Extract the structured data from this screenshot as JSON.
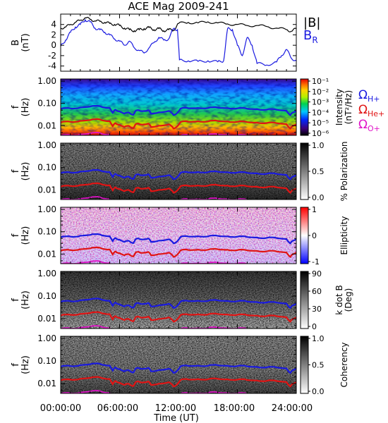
{
  "chart_data": {
    "type": "multi-panel spectrogram",
    "title": "ACE Mag 2009-241",
    "xlabel": "Time (UT)",
    "xticks": [
      "00:00:00",
      "06:00:00",
      "12:00:00",
      "18:00:00",
      "24:00:00"
    ],
    "xlim_hours": [
      0,
      24
    ],
    "freq_ticks": [
      "1.00",
      "0.10",
      "0.01"
    ],
    "panels": [
      {
        "id": "b",
        "type": "line",
        "ylabel": "B",
        "yunit": "(nT)",
        "yticks": [
          "4",
          "2",
          "0",
          "-2",
          "-4"
        ],
        "ylim": [
          -5,
          6
        ],
        "legend": [
          "|B|",
          "B"
        ],
        "legend_sub": "R",
        "series": [
          {
            "name": "|B|",
            "color": "#000000",
            "x": [
              0,
              0.5,
              1,
              1.5,
              2,
              2.5,
              3,
              3.5,
              4,
              4.5,
              5,
              5.5,
              6,
              6.5,
              7,
              7.5,
              8,
              8.5,
              9,
              9.5,
              10,
              10.5,
              11,
              11.5,
              12,
              13,
              14,
              15,
              16,
              17,
              18,
              19,
              20,
              21,
              22,
              23,
              23.5,
              24
            ],
            "y": [
              3.3,
              3.5,
              4.0,
              4.4,
              4.8,
              5.3,
              5.0,
              4.7,
              4.6,
              4.4,
              4.2,
              4.0,
              3.8,
              3.3,
              3.0,
              2.8,
              3.0,
              3.2,
              3.4,
              3.0,
              3.2,
              2.8,
              3.0,
              2.9,
              4.2,
              4.4,
              4.3,
              4.5,
              4.3,
              4.1,
              4.0,
              3.8,
              3.8,
              3.6,
              3.3,
              3.0,
              2.7,
              3.2
            ]
          },
          {
            "name": "B_R",
            "color": "#1a1ae0",
            "x": [
              0,
              0.5,
              1,
              1.5,
              2,
              2.5,
              3,
              3.5,
              4,
              4.5,
              5,
              5.5,
              6,
              6.5,
              7,
              7.5,
              8,
              8.5,
              9,
              9.5,
              10,
              10.5,
              11,
              11.5,
              11.9,
              12.1,
              13,
              14,
              15,
              16,
              16.6,
              17,
              17.5,
              18,
              18.5,
              19,
              19.5,
              20,
              21,
              22,
              22.5,
              23,
              23.5,
              24
            ],
            "y": [
              -0.2,
              1.0,
              2.5,
              3.5,
              4.0,
              4.9,
              4.5,
              3.3,
              3.0,
              2.5,
              2.0,
              1.2,
              0.8,
              0.0,
              0.8,
              -0.5,
              -1.0,
              -1.5,
              -0.5,
              0.5,
              1.5,
              1.0,
              1.2,
              3.2,
              3.0,
              -2.8,
              -3.0,
              -3.1,
              -3.0,
              -3.2,
              -3.0,
              3.2,
              3.0,
              0.0,
              -2.0,
              1.5,
              0.0,
              -3.5,
              -3.8,
              -3.2,
              -2.0,
              -0.8,
              -2.5,
              -3.0
            ]
          }
        ]
      },
      {
        "id": "psd",
        "type": "heatmap",
        "ylabel": "f",
        "yunit": "(Hz)",
        "colorbar": {
          "label_line1": "Intensity",
          "label_line2": "(nT²/Hz)",
          "ticks": [
            "10⁻¹",
            "10⁻²",
            "10⁻³",
            "10⁻⁴",
            "10⁻⁵",
            "10⁻⁶"
          ],
          "colormap": "rainbow"
        },
        "gyro_legend": [
          {
            "symbol": "Ω",
            "sub": "H+",
            "color": "#1a1ae0"
          },
          {
            "symbol": "Ω",
            "sub": "He+",
            "color": "#e01414"
          },
          {
            "symbol": "Ω",
            "sub": "O+",
            "color": "#e014c8"
          }
        ]
      },
      {
        "id": "pol",
        "type": "heatmap",
        "ylabel": "f",
        "yunit": "(Hz)",
        "colorbar": {
          "label_line1": "% Polarization",
          "ticks": [
            "1.0",
            "0.5",
            "0.0"
          ],
          "colormap": "gray"
        }
      },
      {
        "id": "ell",
        "type": "heatmap",
        "ylabel": "f",
        "yunit": "(Hz)",
        "colorbar": {
          "label_line1": "Ellipticity",
          "ticks": [
            "1",
            "0",
            "-1"
          ],
          "colormap": "bwr"
        }
      },
      {
        "id": "kdb",
        "type": "heatmap",
        "ylabel": "f",
        "yunit": "(Hz)",
        "colorbar": {
          "label_line1": "k dot B",
          "label_line2": "(Deg)",
          "ticks": [
            "90",
            "60",
            "30",
            "0"
          ],
          "colormap": "gray_r"
        }
      },
      {
        "id": "coh",
        "type": "heatmap",
        "ylabel": "f",
        "yunit": "(Hz)",
        "colorbar": {
          "label_line1": "Coherency",
          "ticks": [
            "1.0",
            "0.5",
            "0.0"
          ],
          "colormap": "gray"
        }
      }
    ],
    "gyrofrequencies_hz": {
      "x": [
        0,
        1,
        2,
        3,
        4,
        5,
        5.3,
        5.6,
        6,
        6.5,
        7,
        7.4,
        7.6,
        8,
        8.5,
        8.9,
        9.2,
        10,
        11,
        11.5,
        11.8,
        12.2,
        13,
        14,
        15,
        16,
        17,
        18,
        19,
        20,
        21,
        22,
        23,
        23.4,
        23.7,
        24
      ],
      "H+": [
        0.057,
        0.06,
        0.066,
        0.072,
        0.075,
        0.063,
        0.038,
        0.052,
        0.044,
        0.035,
        0.038,
        0.031,
        0.045,
        0.048,
        0.046,
        0.05,
        0.035,
        0.04,
        0.046,
        0.03,
        0.035,
        0.058,
        0.061,
        0.063,
        0.062,
        0.065,
        0.062,
        0.06,
        0.058,
        0.055,
        0.053,
        0.052,
        0.047,
        0.03,
        0.04,
        0.046
      ],
      "He+": [
        0.014,
        0.015,
        0.0165,
        0.018,
        0.019,
        0.016,
        0.0095,
        0.013,
        0.011,
        0.0088,
        0.0095,
        0.0078,
        0.0113,
        0.012,
        0.0115,
        0.0125,
        0.0088,
        0.01,
        0.0115,
        0.0075,
        0.0088,
        0.0145,
        0.0152,
        0.0158,
        0.0155,
        0.0163,
        0.0155,
        0.015,
        0.0145,
        0.0138,
        0.0133,
        0.013,
        0.0118,
        0.0075,
        0.01,
        0.0115
      ],
      "O+": [
        0.0036,
        0.0038,
        0.0041,
        0.0045,
        0.0047,
        0.0039,
        0.0024,
        0.0033,
        0.0028,
        0.0022,
        0.0024,
        0.002,
        0.0028,
        0.003,
        0.0029,
        0.0031,
        0.0022,
        0.0025,
        0.0029,
        0.0019,
        0.0022,
        0.0036,
        0.0038,
        0.0039,
        0.0039,
        0.0041,
        0.0039,
        0.0038,
        0.0036,
        0.0034,
        0.0033,
        0.0033,
        0.003,
        0.0019,
        0.0025,
        0.0029
      ]
    }
  }
}
